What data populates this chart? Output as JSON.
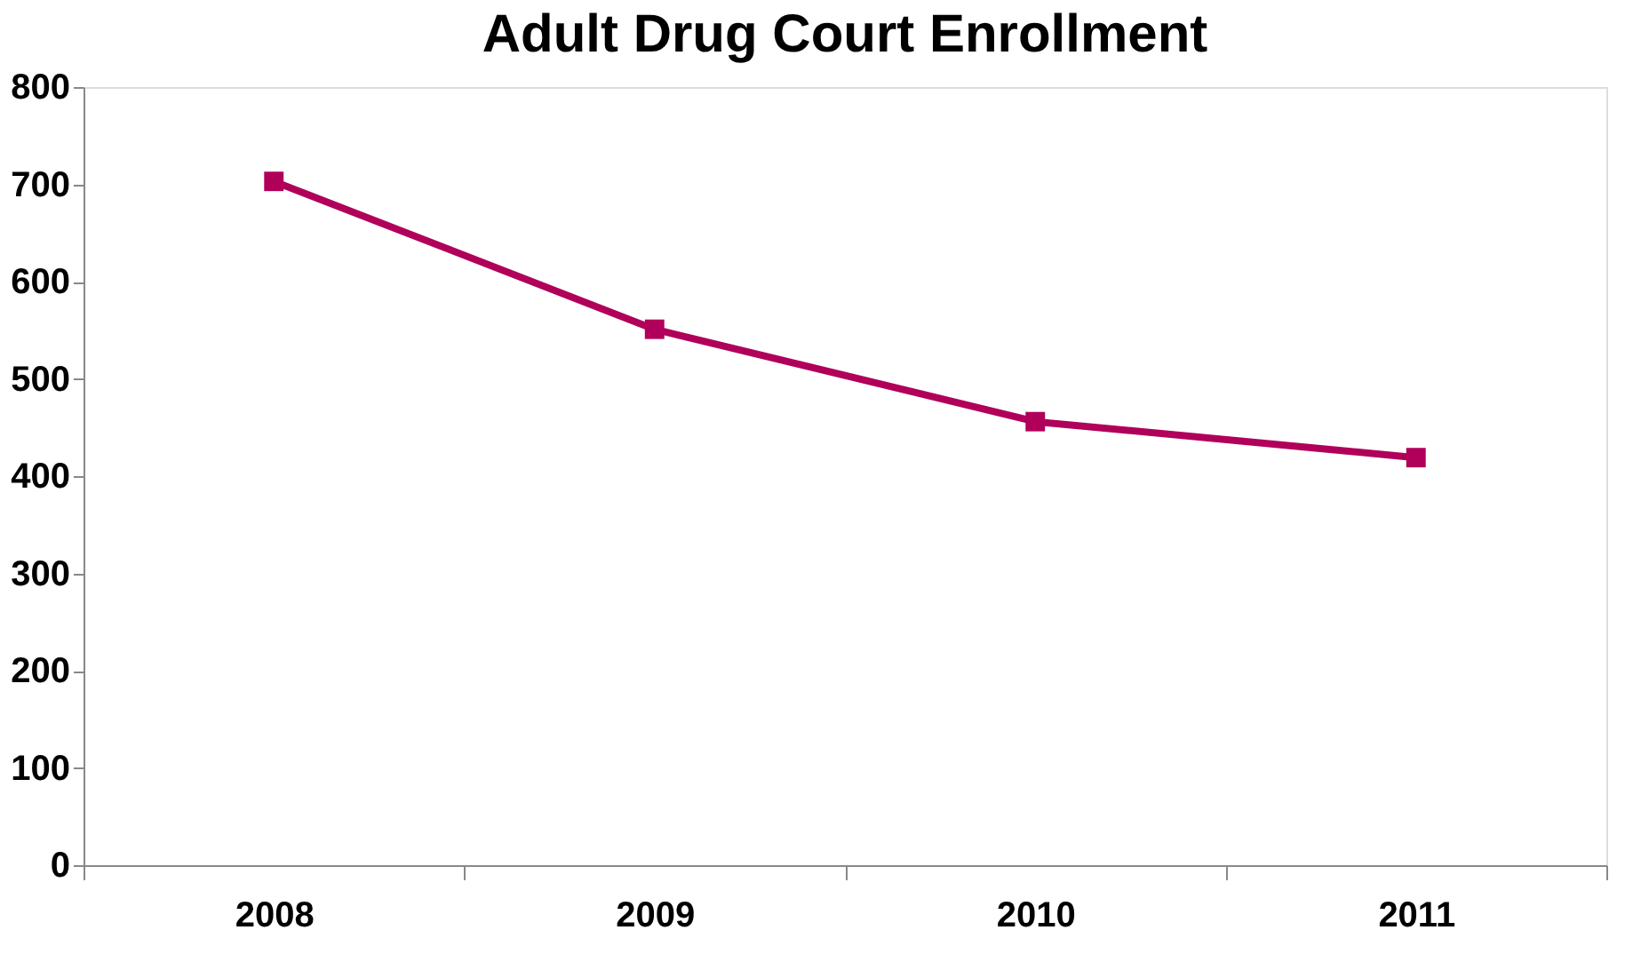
{
  "chart_data": {
    "type": "line",
    "title": "Adult Drug Court Enrollment",
    "categories": [
      "2008",
      "2009",
      "2010",
      "2011"
    ],
    "series": [
      {
        "color": "#b0005a",
        "values": [
          703,
          551,
          456,
          419
        ]
      }
    ],
    "ylim": [
      0,
      800
    ],
    "yticks": [
      0,
      100,
      200,
      300,
      400,
      500,
      600,
      700,
      800
    ],
    "grid": false,
    "marker": "square",
    "line_style": "solid"
  }
}
